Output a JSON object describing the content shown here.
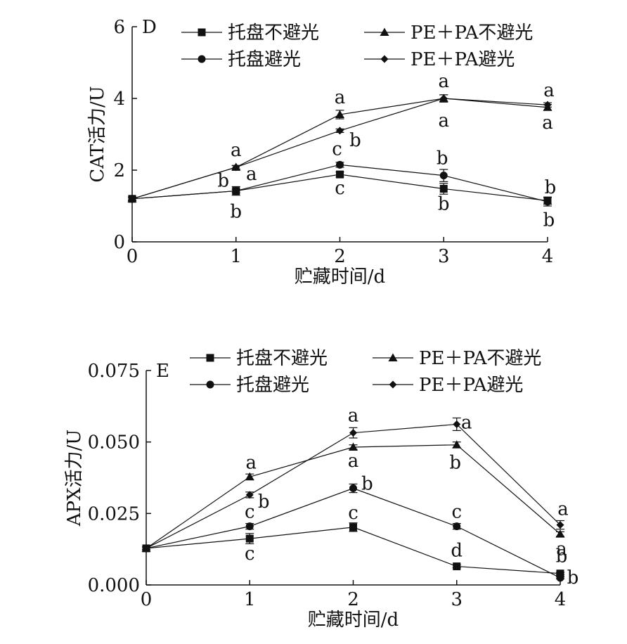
{
  "chart_data": [
    {
      "type": "line",
      "panel_label": "D",
      "xlabel": "贮藏时间/d",
      "ylabel": "CAT活力/U",
      "x": [
        0,
        1,
        2,
        3,
        4
      ],
      "x_ticks": [
        "0",
        "1",
        "2",
        "3",
        "4"
      ],
      "ylim": [
        0,
        6
      ],
      "y_ticks": [
        "0",
        "2",
        "4",
        "6"
      ],
      "legend_placement": "top",
      "series": [
        {
          "name": "托盘不避光",
          "marker": "square",
          "values": [
            1.2,
            1.42,
            1.88,
            1.48,
            1.15
          ],
          "errors": [
            0.05,
            0.12,
            0.07,
            0.15,
            0.1
          ],
          "labels": [
            "",
            "b",
            "c",
            "b",
            "b"
          ]
        },
        {
          "name": "PE＋PA不避光",
          "marker": "triangle",
          "values": [
            1.2,
            2.08,
            3.55,
            4.0,
            3.75
          ],
          "errors": [
            0.05,
            0.05,
            0.12,
            0.1,
            0.08
          ],
          "labels": [
            "",
            "a",
            "a",
            "a",
            "a"
          ]
        },
        {
          "name": "托盘避光",
          "marker": "circle",
          "values": [
            1.2,
            1.42,
            2.15,
            1.85,
            1.12
          ],
          "errors": [
            0.05,
            0.05,
            0.07,
            0.17,
            0.12
          ],
          "labels": [
            "",
            "b",
            "c",
            "b",
            "b"
          ]
        },
        {
          "name": "PE＋PA避光",
          "marker": "diamond",
          "values": [
            1.2,
            2.08,
            3.1,
            4.0,
            3.82
          ],
          "errors": [
            0.05,
            0.05,
            0.05,
            0.1,
            0.06
          ],
          "labels": [
            "",
            "a",
            "b",
            "a",
            "a"
          ]
        }
      ]
    },
    {
      "type": "line",
      "panel_label": "E",
      "xlabel": "贮藏时间/d",
      "ylabel": "APX活力/U",
      "x": [
        0,
        1,
        2,
        3,
        4
      ],
      "x_ticks": [
        "0",
        "1",
        "2",
        "3",
        "4"
      ],
      "ylim": [
        0,
        0.075
      ],
      "y_ticks": [
        "0.000",
        "0.025",
        "0.050",
        "0.075"
      ],
      "legend_placement": "top",
      "series": [
        {
          "name": "托盘不避光",
          "marker": "square",
          "values": [
            0.0128,
            0.0162,
            0.0202,
            0.0065,
            0.004
          ],
          "errors": [
            0.0005,
            0.0018,
            0.0015,
            0.0005,
            0.0004
          ],
          "labels": [
            "",
            "c",
            "c",
            "d",
            "b"
          ]
        },
        {
          "name": "PE＋PA不避光",
          "marker": "triangle",
          "values": [
            0.0128,
            0.0378,
            0.0482,
            0.049,
            0.0178
          ],
          "errors": [
            0.0005,
            0.001,
            0.0008,
            0.001,
            0.0008
          ],
          "labels": [
            "",
            "a",
            "a",
            "b",
            "a"
          ]
        },
        {
          "name": "托盘避光",
          "marker": "circle",
          "values": [
            0.0128,
            0.0205,
            0.0338,
            0.0205,
            0.0025
          ],
          "errors": [
            0.0005,
            0.001,
            0.0015,
            0.001,
            0.0004
          ],
          "labels": [
            "",
            "c",
            "b",
            "c",
            "b"
          ]
        },
        {
          "name": "PE＋PA避光",
          "marker": "diamond",
          "values": [
            0.0128,
            0.0315,
            0.0532,
            0.0562,
            0.021
          ],
          "errors": [
            0.0005,
            0.001,
            0.0018,
            0.0022,
            0.0015
          ],
          "labels": [
            "",
            "b",
            "a",
            "a",
            "a"
          ]
        }
      ]
    }
  ]
}
